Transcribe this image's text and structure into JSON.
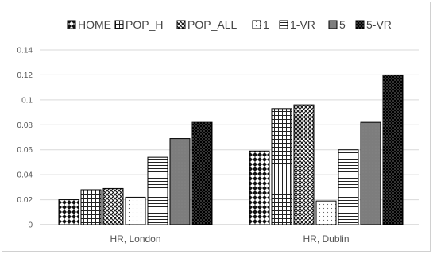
{
  "chart_data": {
    "type": "bar",
    "categories": [
      "HR, London",
      "HR, Dublin"
    ],
    "series": [
      {
        "name": "HOME",
        "values": [
          0.02,
          0.059
        ]
      },
      {
        "name": "POP_H",
        "values": [
          0.028,
          0.093
        ]
      },
      {
        "name": "POP_ALL",
        "values": [
          0.029,
          0.096
        ]
      },
      {
        "name": "1",
        "values": [
          0.022,
          0.019
        ]
      },
      {
        "name": "1-VR",
        "values": [
          0.054,
          0.06
        ]
      },
      {
        "name": "5",
        "values": [
          0.069,
          0.082
        ]
      },
      {
        "name": "5-VR",
        "values": [
          0.082,
          0.12
        ]
      }
    ],
    "y_ticks": [
      "0",
      "0.02",
      "0.04",
      "0.06",
      "0.08",
      "0.1",
      "0.12",
      "0.14"
    ],
    "ylim": [
      0,
      0.14
    ],
    "grid": true,
    "legend_position": "top",
    "title": "",
    "xlabel": "",
    "ylabel": ""
  }
}
